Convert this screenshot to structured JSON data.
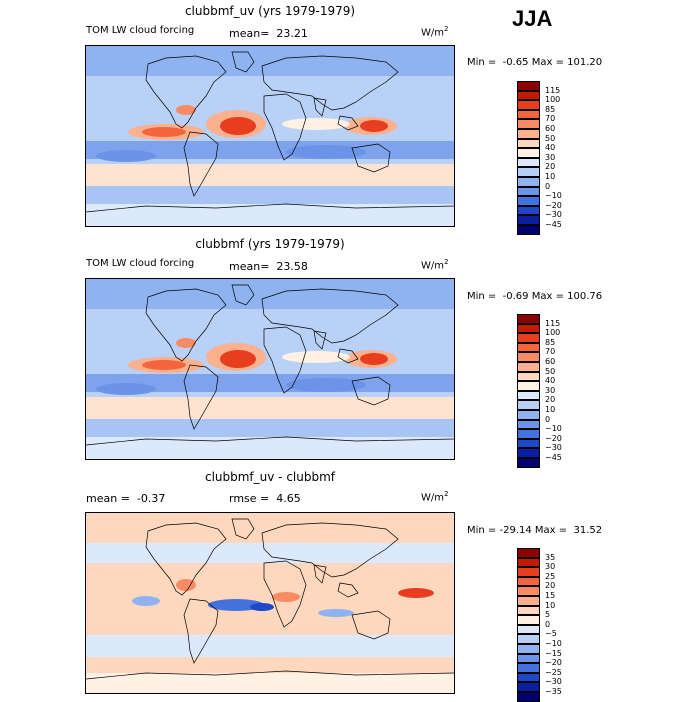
{
  "season": "JJA",
  "panels": [
    {
      "title": "clubbmf_uv (yrs 1979-1979)",
      "field_label": "TOM LW cloud forcing",
      "mean_text": "mean=  23.21",
      "stat2_text": "",
      "units": "W/m",
      "units_exp": "2",
      "minmax_text": "Min =  -0.65 Max = 101.20",
      "colorbar": {
        "labels": [
          "115",
          "100",
          "85",
          "70",
          "60",
          "50",
          "40",
          "30",
          "20",
          "10",
          "0",
          "-10",
          "-20",
          "-30",
          "-45"
        ],
        "colors": [
          "#8b0000",
          "#c41a00",
          "#e63e1f",
          "#f4653d",
          "#f98b64",
          "#fbb08e",
          "#fdd7be",
          "#fff1e4",
          "#dce9fb",
          "#b7d0f7",
          "#8fb3f0",
          "#6b94e8",
          "#4472dc",
          "#1f48c8",
          "#0a1ea0",
          "#00006e"
        ]
      },
      "field": "ctrl"
    },
    {
      "title": "clubbmf (yrs 1979-1979)",
      "field_label": "TOM LW cloud forcing",
      "mean_text": "mean=  23.58",
      "stat2_text": "",
      "units": "W/m",
      "units_exp": "2",
      "minmax_text": "Min =  -0.69 Max = 100.76",
      "colorbar": {
        "labels": [
          "115",
          "100",
          "85",
          "70",
          "60",
          "50",
          "40",
          "30",
          "20",
          "10",
          "0",
          "-10",
          "-20",
          "-30",
          "-45"
        ],
        "colors": [
          "#8b0000",
          "#c41a00",
          "#e63e1f",
          "#f4653d",
          "#f98b64",
          "#fbb08e",
          "#fdd7be",
          "#fff1e4",
          "#dce9fb",
          "#b7d0f7",
          "#8fb3f0",
          "#6b94e8",
          "#4472dc",
          "#1f48c8",
          "#0a1ea0",
          "#00006e"
        ]
      },
      "field": "ctrl"
    },
    {
      "title": "clubbmf_uv - clubbmf",
      "field_label": "",
      "mean_text": "mean =  -0.37",
      "stat2_text": "rmse =  4.65",
      "units": "W/m",
      "units_exp": "2",
      "minmax_text": "Min = -29.14 Max =  31.52",
      "colorbar": {
        "labels": [
          "35",
          "30",
          "25",
          "20",
          "15",
          "10",
          "5",
          "0",
          "-5",
          "-10",
          "-15",
          "-20",
          "-25",
          "-30",
          "-35"
        ],
        "colors": [
          "#8b0000",
          "#c41a00",
          "#e63e1f",
          "#f4653d",
          "#f98b64",
          "#fbb08e",
          "#fdd7be",
          "#fff1e4",
          "#dce9fb",
          "#b7d0f7",
          "#8fb3f0",
          "#6b94e8",
          "#4472dc",
          "#1f48c8",
          "#0a1ea0",
          "#00006e"
        ]
      },
      "field": "diff"
    }
  ]
}
